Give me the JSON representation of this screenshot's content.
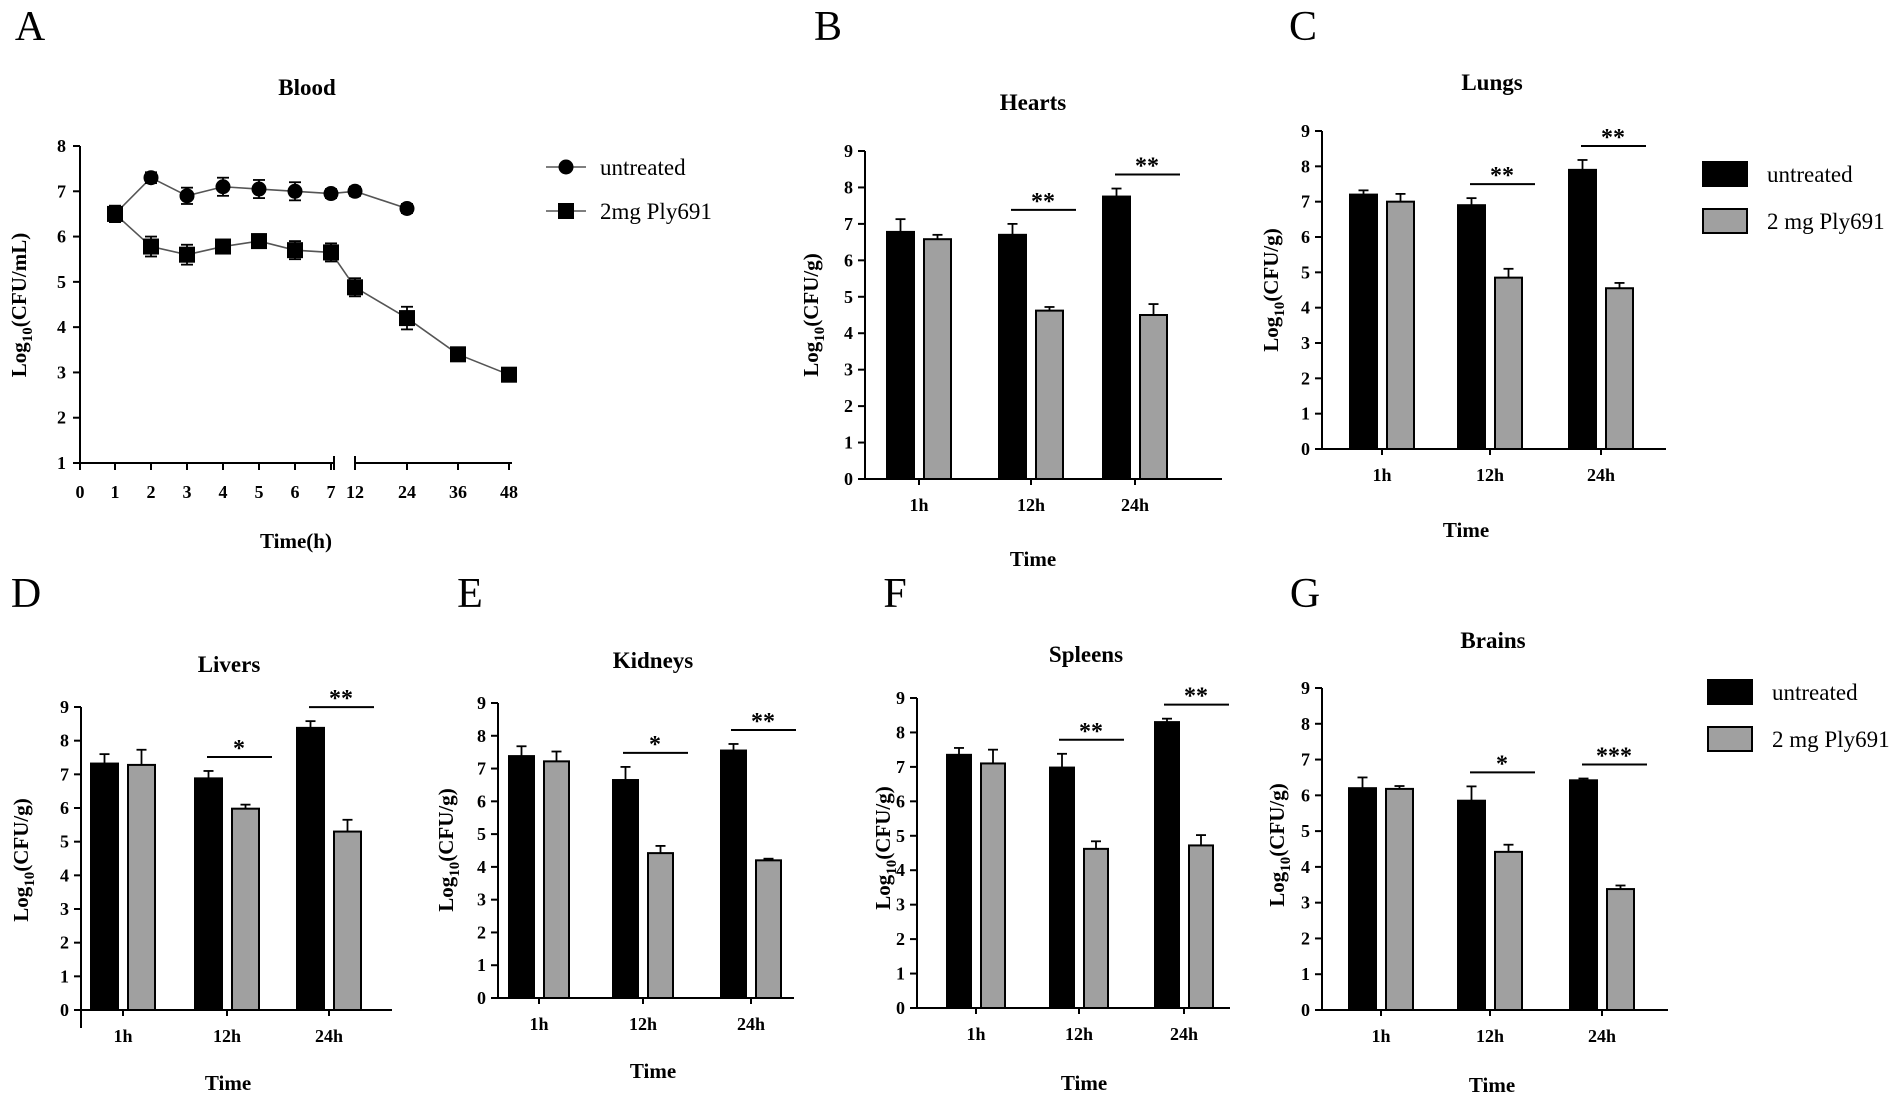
{
  "colors": {
    "untreated": "#000000",
    "treated": "#a0a0a0",
    "axis": "#000000"
  },
  "legend_panel_a": {
    "untreated": "untreated",
    "treated": "2mg Ply691",
    "untreated_marker": "circle",
    "treated_marker": "square"
  },
  "legend_bars": {
    "untreated": "untreated",
    "treated": "2 mg Ply691"
  },
  "chart_data": [
    {
      "id": "A",
      "letter": "A",
      "type": "line",
      "title": "Blood",
      "xlabel": "Time(h)",
      "ylabel_main": "Log",
      "ylabel_sub": "10",
      "ylabel_tail": "(CFU/mL)",
      "ylim": [
        1,
        8
      ],
      "yticks": [
        "1",
        "2",
        "3",
        "4",
        "5",
        "6",
        "7",
        "8"
      ],
      "xticks": [
        "0",
        "1",
        "2",
        "3",
        "4",
        "5",
        "6",
        "7",
        "12",
        "24",
        "36",
        "48"
      ],
      "series": [
        {
          "name": "untreated",
          "x": [
            "1",
            "2",
            "3",
            "4",
            "5",
            "6",
            "7",
            "12",
            "24"
          ],
          "values": [
            6.5,
            7.3,
            6.9,
            7.1,
            7.05,
            7.0,
            6.95,
            7.0,
            6.62
          ],
          "errors": [
            0.18,
            0.12,
            0.18,
            0.2,
            0.2,
            0.2,
            0.1,
            0.1,
            0.1
          ]
        },
        {
          "name": "2mg Ply691",
          "x": [
            "1",
            "2",
            "3",
            "4",
            "5",
            "6",
            "7",
            "12",
            "24",
            "36",
            "48"
          ],
          "values": [
            6.5,
            5.78,
            5.6,
            5.78,
            5.9,
            5.7,
            5.65,
            4.88,
            4.2,
            3.4,
            2.95
          ],
          "errors": [
            0.18,
            0.22,
            0.22,
            0.15,
            0.15,
            0.2,
            0.2,
            0.2,
            0.25,
            0.15,
            0.15
          ]
        }
      ]
    },
    {
      "id": "B",
      "letter": "B",
      "type": "bar",
      "title": "Hearts",
      "categories": [
        "1h",
        "12h",
        "24h"
      ],
      "xlabel": "Time",
      "ylabel_main": "Log",
      "ylabel_sub": "10",
      "ylabel_tail": "(CFU/g)",
      "ylim": [
        0,
        9
      ],
      "yticks": [
        "0",
        "1",
        "2",
        "3",
        "4",
        "5",
        "6",
        "7",
        "8",
        "9"
      ],
      "series": [
        {
          "name": "untreated",
          "values": [
            6.78,
            6.7,
            7.75
          ],
          "errors": [
            0.35,
            0.3,
            0.22
          ]
        },
        {
          "name": "2 mg Ply691",
          "values": [
            6.58,
            4.62,
            4.5
          ],
          "errors": [
            0.12,
            0.1,
            0.3
          ]
        }
      ],
      "significance": [
        "",
        "**",
        "**"
      ]
    },
    {
      "id": "C",
      "letter": "C",
      "type": "bar",
      "title": "Lungs",
      "categories": [
        "1h",
        "12h",
        "24h"
      ],
      "xlabel": "Time",
      "ylabel_main": "Log",
      "ylabel_sub": "10",
      "ylabel_tail": "(CFU/g)",
      "ylim": [
        0,
        9
      ],
      "yticks": [
        "0",
        "1",
        "2",
        "3",
        "4",
        "5",
        "6",
        "7",
        "8",
        "9"
      ],
      "series": [
        {
          "name": "untreated",
          "values": [
            7.2,
            6.9,
            7.9
          ],
          "errors": [
            0.12,
            0.2,
            0.28
          ]
        },
        {
          "name": "2 mg Ply691",
          "values": [
            7.0,
            4.85,
            4.55
          ],
          "errors": [
            0.22,
            0.25,
            0.15
          ]
        }
      ],
      "significance": [
        "",
        "**",
        "**"
      ]
    },
    {
      "id": "D",
      "letter": "D",
      "type": "bar",
      "title": "Livers",
      "categories": [
        "1h",
        "12h",
        "24h"
      ],
      "xlabel": "Time",
      "ylabel_main": "Log",
      "ylabel_sub": "10",
      "ylabel_tail": "(CFU/g)",
      "ylim": [
        0,
        9
      ],
      "yticks": [
        "0",
        "1",
        "2",
        "3",
        "4",
        "5",
        "6",
        "7",
        "8",
        "9"
      ],
      "series": [
        {
          "name": "untreated",
          "values": [
            7.32,
            6.88,
            8.38
          ],
          "errors": [
            0.28,
            0.22,
            0.2
          ]
        },
        {
          "name": "2 mg Ply691",
          "values": [
            7.28,
            5.98,
            5.3
          ],
          "errors": [
            0.45,
            0.12,
            0.35
          ]
        }
      ],
      "significance": [
        "",
        "*",
        "**"
      ]
    },
    {
      "id": "E",
      "letter": "E",
      "type": "bar",
      "title": "Kidneys",
      "categories": [
        "1h",
        "12h",
        "24h"
      ],
      "xlabel": "Time",
      "ylabel_main": "Log",
      "ylabel_sub": "10",
      "ylabel_tail": "(CFU/g)",
      "ylim": [
        0,
        9
      ],
      "yticks": [
        "0",
        "1",
        "2",
        "3",
        "4",
        "5",
        "6",
        "7",
        "8",
        "9"
      ],
      "series": [
        {
          "name": "untreated",
          "values": [
            7.38,
            6.65,
            7.55
          ],
          "errors": [
            0.3,
            0.4,
            0.2
          ]
        },
        {
          "name": "2 mg Ply691",
          "values": [
            7.22,
            4.42,
            4.2
          ],
          "errors": [
            0.3,
            0.22,
            0.05
          ]
        }
      ],
      "significance": [
        "",
        "*",
        "**"
      ]
    },
    {
      "id": "F",
      "letter": "F",
      "type": "bar",
      "title": "Spleens",
      "categories": [
        "1h",
        "12h",
        "24h"
      ],
      "xlabel": "Time",
      "ylabel_main": "Log",
      "ylabel_sub": "10",
      "ylabel_tail": "(CFU/g)",
      "ylim": [
        0,
        9
      ],
      "yticks": [
        "0",
        "1",
        "2",
        "3",
        "4",
        "5",
        "6",
        "7",
        "8",
        "9"
      ],
      "series": [
        {
          "name": "untreated",
          "values": [
            7.35,
            6.98,
            8.3
          ],
          "errors": [
            0.2,
            0.4,
            0.1
          ]
        },
        {
          "name": "2 mg Ply691",
          "values": [
            7.1,
            4.62,
            4.72
          ],
          "errors": [
            0.4,
            0.22,
            0.3
          ]
        }
      ],
      "significance": [
        "",
        "**",
        "**"
      ]
    },
    {
      "id": "G",
      "letter": "G",
      "type": "bar",
      "title": "Brains",
      "categories": [
        "1h",
        "12h",
        "24h"
      ],
      "xlabel": "Time",
      "ylabel_main": "Log",
      "ylabel_sub": "10",
      "ylabel_tail": "(CFU/g)",
      "ylim": [
        0,
        9
      ],
      "yticks": [
        "0",
        "1",
        "2",
        "3",
        "4",
        "5",
        "6",
        "7",
        "8",
        "9"
      ],
      "series": [
        {
          "name": "untreated",
          "values": [
            6.2,
            5.85,
            6.42
          ],
          "errors": [
            0.3,
            0.4,
            0.05
          ]
        },
        {
          "name": "2 mg Ply691",
          "values": [
            6.18,
            4.42,
            3.38
          ],
          "errors": [
            0.08,
            0.2,
            0.1
          ]
        }
      ],
      "significance": [
        "",
        "*",
        "***"
      ]
    }
  ]
}
